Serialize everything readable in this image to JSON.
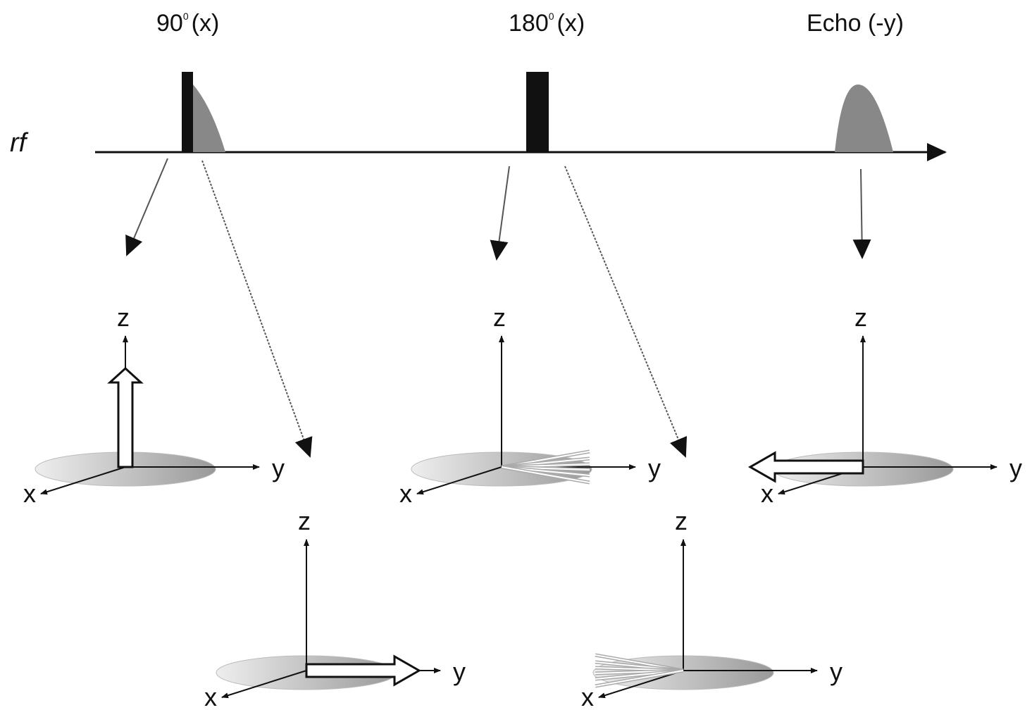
{
  "rf_label": "rf",
  "pulses": [
    {
      "angle": "90",
      "sup": "0",
      "phase": "(x)"
    },
    {
      "angle": "180",
      "sup": "0",
      "phase": "(x)"
    }
  ],
  "echo_label": "Echo (-y)",
  "diagrams": [
    {
      "z": "z",
      "y": "y",
      "x": "x"
    },
    {
      "z": "z",
      "y": "y",
      "x": "x"
    },
    {
      "z": "z",
      "y": "y",
      "x": "x"
    },
    {
      "z": "z",
      "y": "y",
      "x": "x"
    },
    {
      "z": "z",
      "y": "y",
      "x": "x"
    }
  ]
}
